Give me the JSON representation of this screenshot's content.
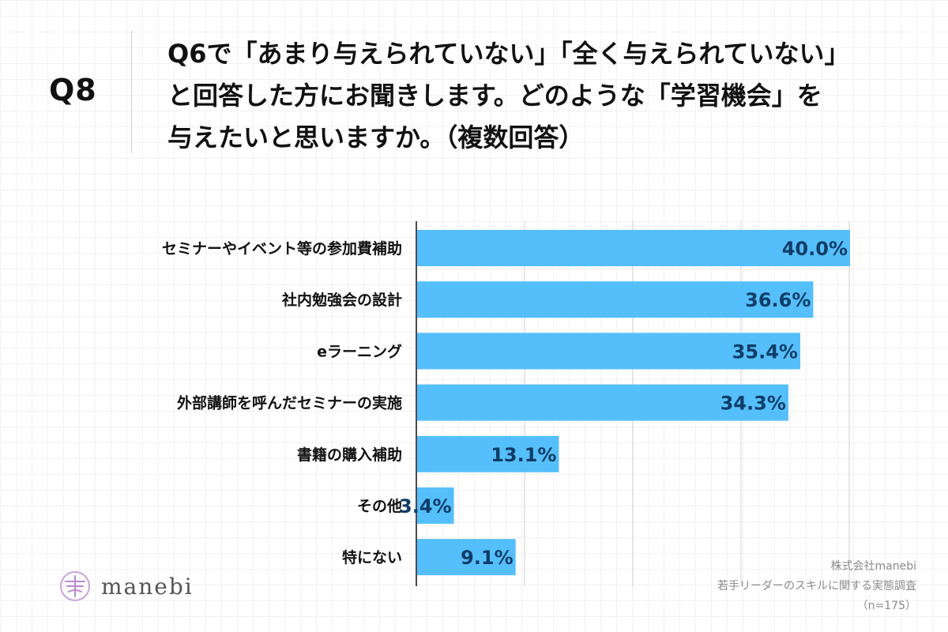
{
  "question": {
    "number": "Q8",
    "lines": [
      "Q6で「あまり与えられていない」「全く与えられていない」",
      "と回答した方にお聞きします。どのような「学習機会」を",
      "与えたいと思いますか。（複数回答）"
    ]
  },
  "chart_data": {
    "type": "bar",
    "orientation": "horizontal",
    "categories": [
      "セミナーやイベント等の参加費補助",
      "社内勉強会の設計",
      "eラーニング",
      "外部講師を呼んだセミナーの実施",
      "書籍の購入補助",
      "その他",
      "特にない"
    ],
    "values": [
      40.0,
      36.6,
      35.4,
      34.3,
      13.1,
      3.4,
      9.1
    ],
    "value_labels": [
      "40.0%",
      "36.6%",
      "35.4%",
      "34.3%",
      "13.1%",
      "3.4%",
      "9.1%"
    ],
    "xlim": [
      0,
      40
    ],
    "grid_step": 10,
    "grid": true,
    "bar_color": "#55bffc",
    "grid_color": "#d0d0d0",
    "label_color": "#0e3d66"
  },
  "footer": {
    "company": "株式会社manebi",
    "survey": "若手リーダーのスキルに関する実態調査",
    "sample": "（n=175）"
  },
  "logo": {
    "text": "manebi",
    "color": "#b98ad0"
  }
}
